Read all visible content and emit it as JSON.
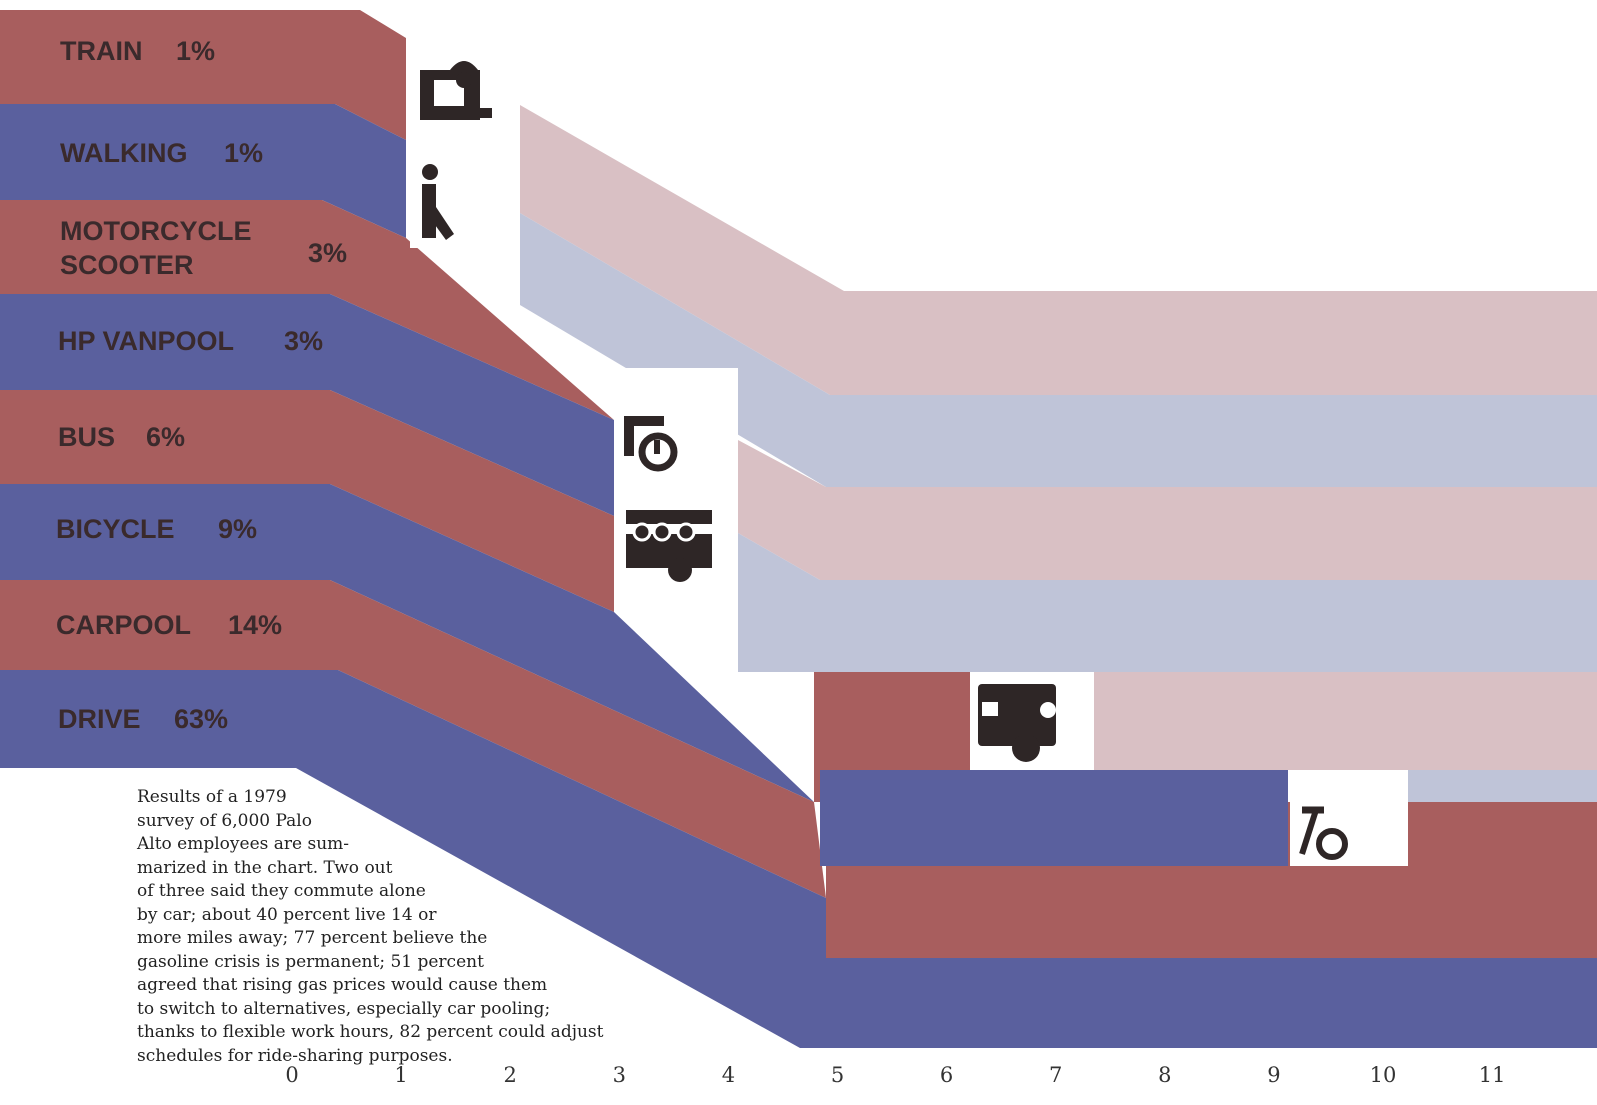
{
  "chart_data": {
    "type": "area",
    "title": "",
    "xlabel": "",
    "ylabel": "",
    "x_ticks": [
      "0",
      "1",
      "2",
      "3",
      "4",
      "5",
      "6",
      "7",
      "8",
      "9",
      "10",
      "11"
    ],
    "xlim": [
      0,
      11.3
    ],
    "series": [
      {
        "label_lines": [
          "TRAIN",
          "1%"
        ],
        "value_pct": 1,
        "color": "#a85e5e",
        "icon": "train-icon",
        "drop_miles": 0.6
      },
      {
        "label_lines": [
          "WALKING",
          "1%"
        ],
        "value_pct": 1,
        "color": "#5a609e",
        "icon": "walking-person-icon",
        "drop_miles": 0.6
      },
      {
        "label_lines": [
          "MOTORCYCLE",
          "SCOOTER",
          "3%"
        ],
        "value_pct": 3,
        "color": "#a85e5e",
        "icon": "motorcycle-icon",
        "drop_miles": 2.1
      },
      {
        "label_lines": [
          "HP VANPOOL",
          "3%"
        ],
        "value_pct": 3,
        "color": "#5a609e",
        "icon": "vanpool-icon",
        "drop_miles": 2.1
      },
      {
        "label_lines": [
          "BUS",
          "6%"
        ],
        "value_pct": 6,
        "color": "#a85e5e",
        "icon": "bus-icon",
        "drop_miles": 3.2
      },
      {
        "label_lines": [
          "BICYCLE",
          "9%"
        ],
        "value_pct": 9,
        "color": "#5a609e",
        "icon": "bicycle-icon",
        "drop_miles": 3.2
      },
      {
        "label_lines": [
          "CARPOOL",
          "14%"
        ],
        "value_pct": 14,
        "color": "#a85e5e",
        "icon": "carpool-icon",
        "drop_miles": 6.2
      },
      {
        "label_lines": [
          "DRIVE",
          "63%"
        ],
        "value_pct": 63,
        "color": "#5a609e",
        "icon": "car-icon",
        "drop_miles": 9.2
      }
    ],
    "faded_colors": {
      "red": "#d9c0c4",
      "blue": "#bfc4d8"
    }
  },
  "caption": "Results of a 1979\nsurvey of 6,000 Palo\nAlto employees are sum-\nmarized in the chart. Two out\nof three said they commute alone\nby car; about 40 percent live 14 or\nmore miles away; 77 percent believe the\ngasoline crisis is permanent; 51 percent\nagreed that rising gas prices would cause them\nto switch to alternatives, especially car pooling;\nthanks to flexible work hours, 82 percent could adjust\nschedules for ride-sharing purposes."
}
